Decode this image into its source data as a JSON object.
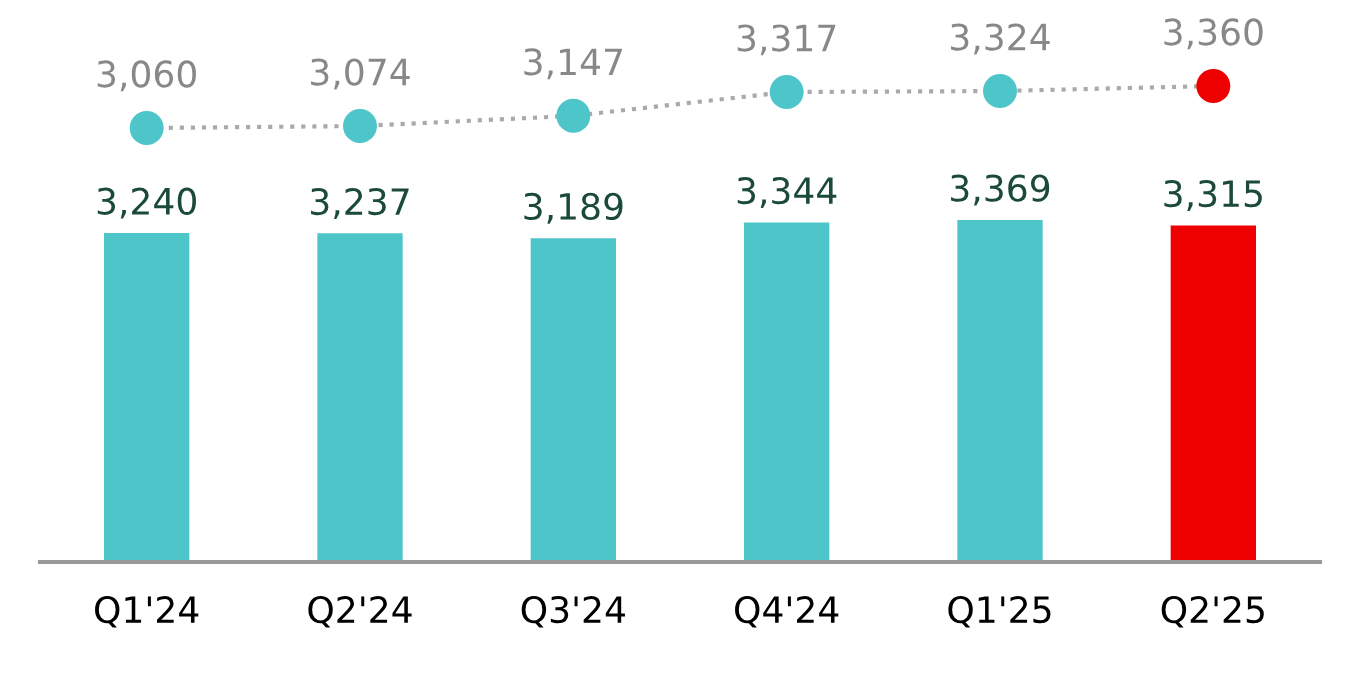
{
  "chart_data": [
    {
      "type": "line",
      "categories": [
        null,
        null,
        null,
        null,
        null,
        null
      ],
      "series": [
        {
          "values": [
            3060,
            3074,
            3147,
            3317,
            3324,
            3360
          ],
          "value_labels": [
            "3,060",
            "3,074",
            "3,147",
            "3,317",
            "3,324",
            "3,360"
          ],
          "colors": [
            "#4ec5c9",
            "#4ec5c9",
            "#4ec5c9",
            "#4ec5c9",
            "#4ec5c9",
            "#ee0000"
          ],
          "color": "#aaaaaa",
          "line_style": "dotted",
          "marker": "circle"
        }
      ],
      "tick_labels": false
    },
    {
      "type": "bar",
      "categories": [
        "Q1'24",
        "Q2'24",
        "Q3'24",
        "Q4'24",
        "Q1'25",
        "Q2'25"
      ],
      "series": [
        {
          "values": [
            3240,
            3237,
            3189,
            3344,
            3369,
            3315
          ],
          "value_labels": [
            "3,240",
            "3,237",
            "3,189",
            "3,344",
            "3,369",
            "3,315"
          ],
          "colors": [
            "#4ec5c9",
            "#4ec5c9",
            "#4ec5c9",
            "#4ec5c9",
            "#4ec5c9",
            "#ee0000"
          ]
        }
      ],
      "tick_labels": "x"
    }
  ]
}
